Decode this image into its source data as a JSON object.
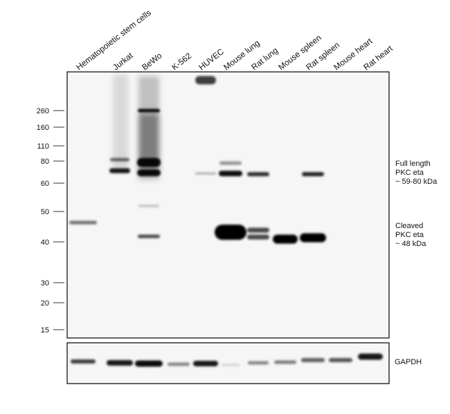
{
  "lanes": [
    "Hematopoietic stem cells",
    "Jurkat",
    "BeWo",
    "K-562",
    "HUVEC",
    "Mouse lung",
    "Rat lung",
    "Mouse spleen",
    "Rat spleen",
    "Mouse heart",
    "Rat heart"
  ],
  "markers": [
    260,
    160,
    110,
    80,
    60,
    50,
    40,
    30,
    20,
    15
  ],
  "annotations": {
    "full_length": [
      "Full length",
      "PKC eta",
      "~ 59-80 kDa"
    ],
    "cleaved": [
      "Cleaved",
      "PKC eta",
      "~ 48 kDa"
    ]
  },
  "loading_control": "GAPDH"
}
